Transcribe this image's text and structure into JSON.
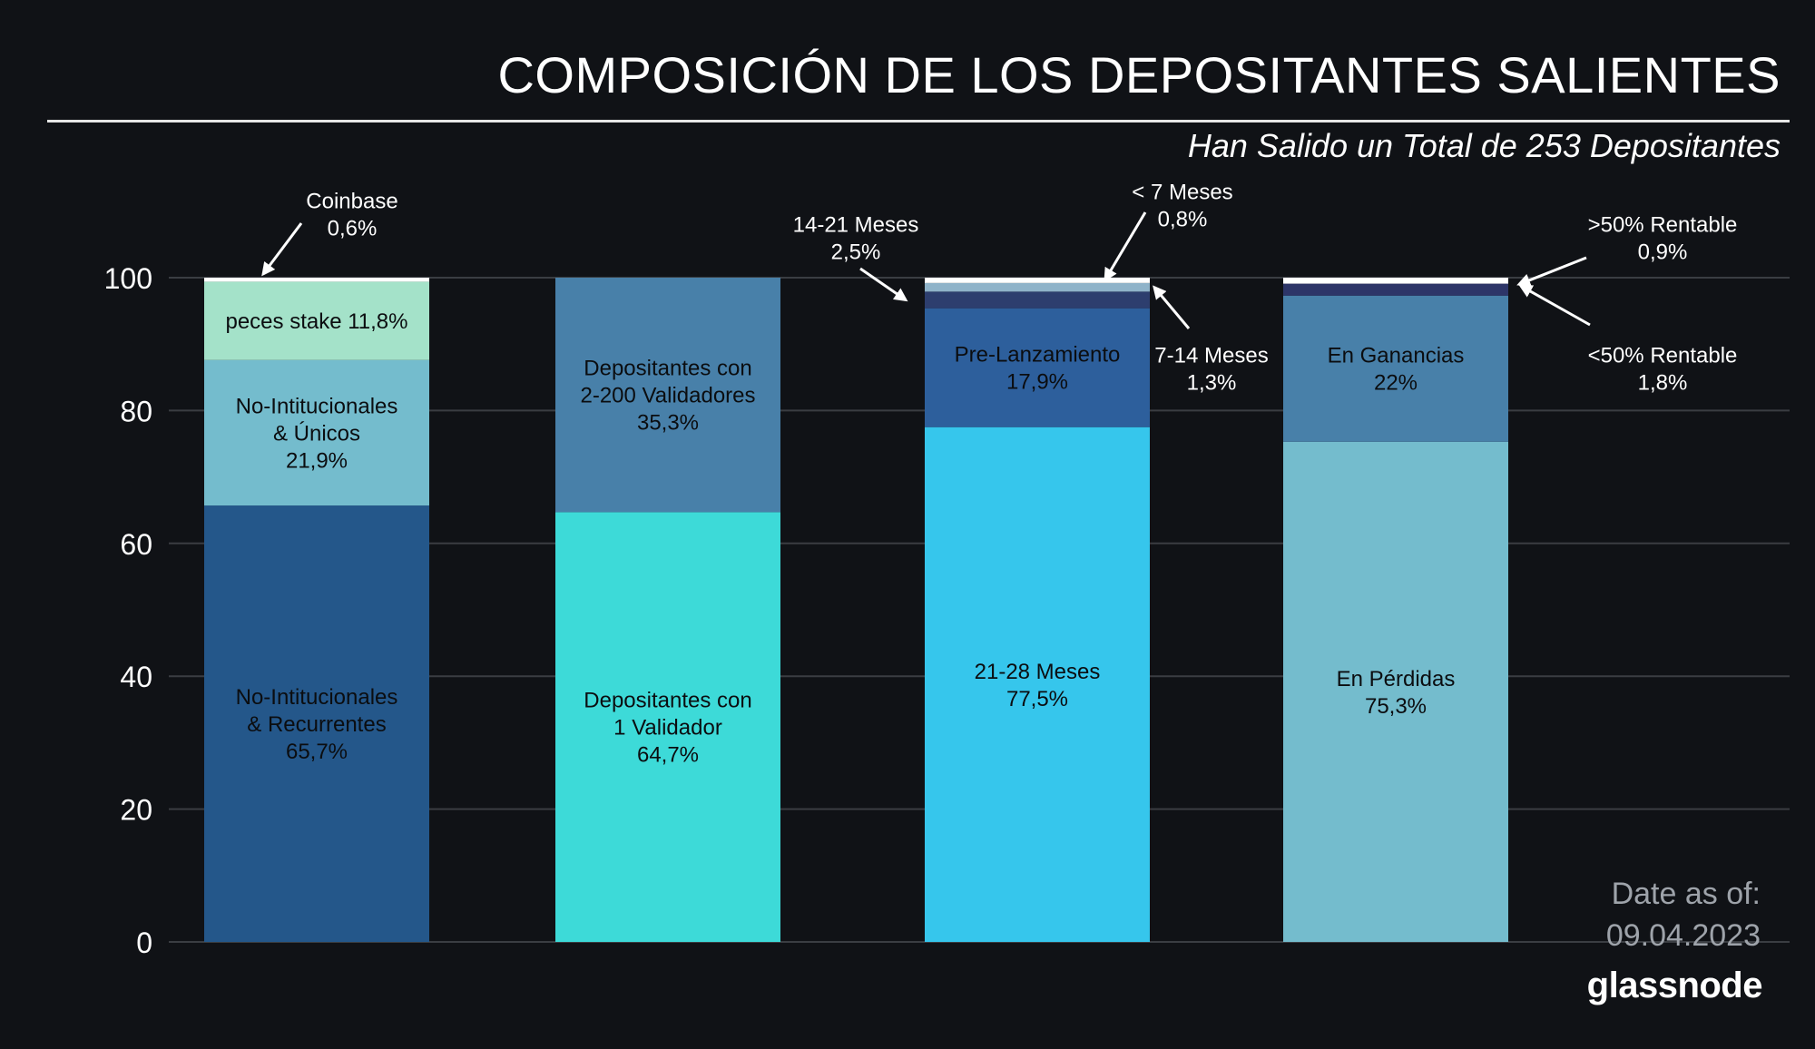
{
  "header": {
    "title": "COMPOSICIÓN DE LOS DEPOSITANTES SALIENTES",
    "subtitle": "Han Salido un Total de 253 Depositantes"
  },
  "footer": {
    "date_label": "Date as of:",
    "date_value": "09.04.2023",
    "brand": "glassnode"
  },
  "colors": {
    "background": "#101216",
    "grid": "#3a3d42",
    "axis_text": "#ffffff",
    "segment_text": "#0b0d10",
    "white_bar": "#ffffff"
  },
  "chart_data": {
    "type": "bar",
    "stacked": true,
    "title": "COMPOSICIÓN DE LOS DEPOSITANTES SALIENTES",
    "subtitle": "Han Salido un Total de 253 Depositantes",
    "ylim": [
      0,
      100
    ],
    "yticks": [
      0,
      20,
      40,
      60,
      80,
      100
    ],
    "grid": true,
    "bars": [
      {
        "id": "tipo",
        "segments": [
          {
            "label": [
              "No-Intitucionales",
              "& Recurrentes",
              "65,7%"
            ],
            "value": 65.7,
            "color": "#24578a",
            "label_position": "inside"
          },
          {
            "label": [
              "No-Intitucionales",
              "& Únicos",
              "21,9%"
            ],
            "value": 21.9,
            "color": "#74bccd",
            "label_position": "inside"
          },
          {
            "label": [
              "peces stake 11,8%"
            ],
            "value": 11.8,
            "color": "#a4e2c9",
            "label_position": "inside"
          },
          {
            "label": [
              "Coinbase",
              "0,6%"
            ],
            "value": 0.6,
            "color": "#ffffff",
            "label_position": "callout"
          }
        ]
      },
      {
        "id": "validadores",
        "segments": [
          {
            "label": [
              "Depositantes con",
              "1 Validador",
              "64,7%"
            ],
            "value": 64.7,
            "color": "#3ddad8",
            "label_position": "inside"
          },
          {
            "label": [
              "Depositantes con",
              "2-200 Validadores",
              "35,3%"
            ],
            "value": 35.3,
            "color": "#4880a9",
            "label_position": "inside"
          }
        ]
      },
      {
        "id": "antiguedad",
        "segments": [
          {
            "label": [
              "21-28 Meses",
              "77,5%"
            ],
            "value": 77.5,
            "color": "#36c6ec",
            "label_position": "inside"
          },
          {
            "label": [
              "Pre-Lanzamiento",
              "17,9%"
            ],
            "value": 17.9,
            "color": "#2d5f9c",
            "label_position": "inside"
          },
          {
            "label": [
              "14-21 Meses",
              "2,5%"
            ],
            "value": 2.5,
            "color": "#2d3e6e",
            "label_position": "callout"
          },
          {
            "label": [
              "7-14 Meses",
              "1,3%"
            ],
            "value": 1.3,
            "color": "#8fb3c9",
            "label_position": "callout"
          },
          {
            "label": [
              "< 7 Meses",
              "0,8%"
            ],
            "value": 0.8,
            "color": "#ffffff",
            "label_position": "callout"
          }
        ]
      },
      {
        "id": "rentabilidad",
        "segments": [
          {
            "label": [
              "En Pérdidas",
              "75,3%"
            ],
            "value": 75.3,
            "color": "#74bccd",
            "label_position": "inside"
          },
          {
            "label": [
              "En Ganancias",
              "22%"
            ],
            "value": 22,
            "color": "#4880a9",
            "label_position": "inside"
          },
          {
            "label": [
              "<50% Rentable",
              "1,8%"
            ],
            "value": 1.8,
            "color": "#2d3568",
            "label_position": "callout"
          },
          {
            "label": [
              ">50% Rentable",
              "0,9%"
            ],
            "value": 0.9,
            "color": "#ffffff",
            "label_position": "callout"
          }
        ]
      }
    ]
  }
}
